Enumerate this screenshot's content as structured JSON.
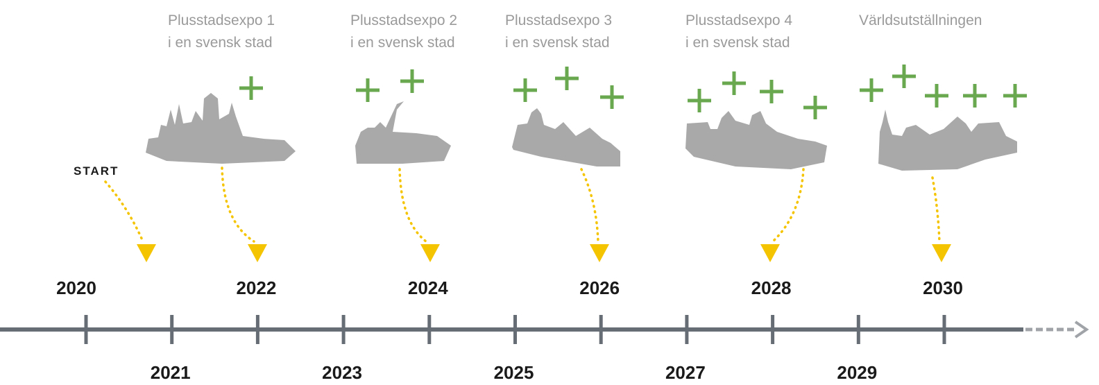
{
  "start_label": "START",
  "events": [
    {
      "title": "Plusstadsexpo 1",
      "subtitle": "i en svensk stad"
    },
    {
      "title": "Plusstadsexpo 2",
      "subtitle": "i en svensk stad"
    },
    {
      "title": "Plusstadsexpo 3",
      "subtitle": "i en svensk stad"
    },
    {
      "title": "Plusstadsexpo 4",
      "subtitle": "i en svensk stad"
    },
    {
      "title": "Världsutställningen"
    }
  ],
  "years": [
    "2020",
    "2021",
    "2022",
    "2023",
    "2024",
    "2025",
    "2026",
    "2027",
    "2028",
    "2029",
    "2030"
  ]
}
